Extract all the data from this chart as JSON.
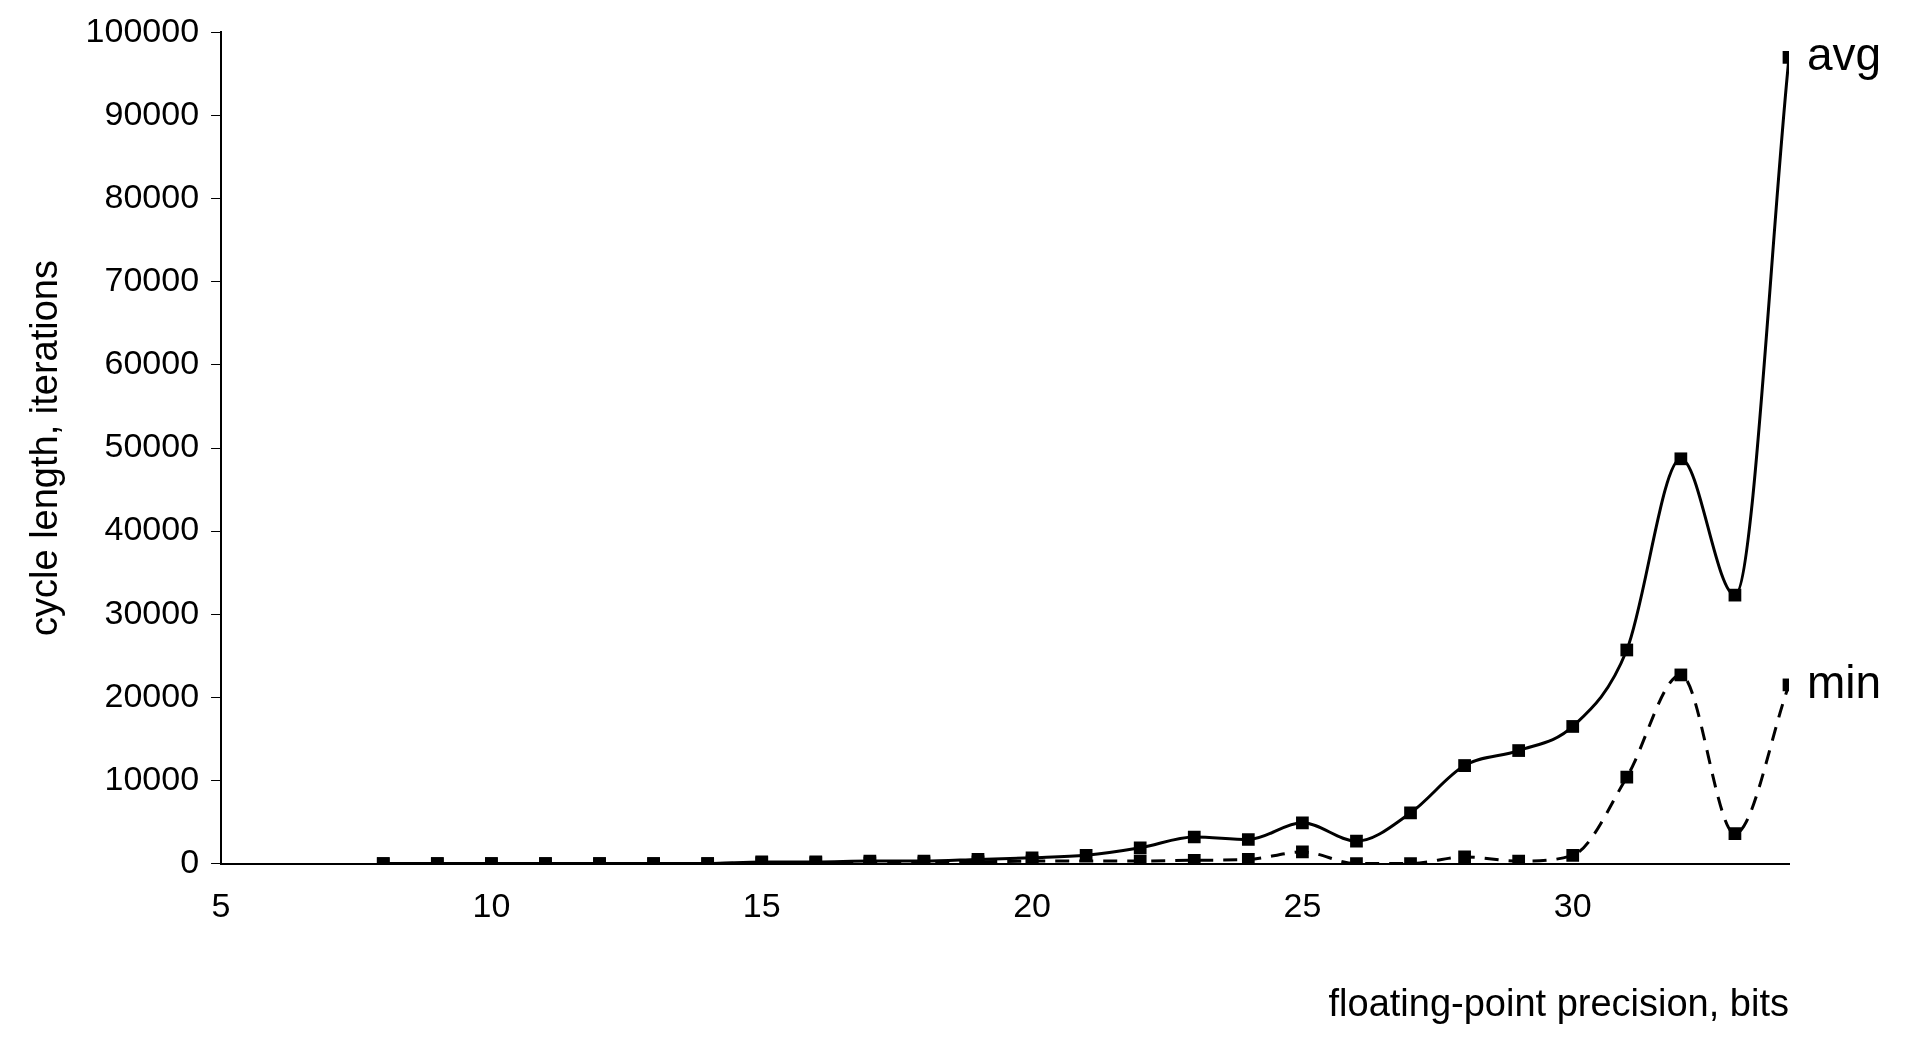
{
  "chart_data": {
    "type": "line",
    "xlabel": "floating-point precision, bits",
    "ylabel": "cycle length, iterations",
    "x": [
      8,
      9,
      10,
      11,
      12,
      13,
      14,
      15,
      16,
      17,
      18,
      19,
      20,
      21,
      22,
      23,
      24,
      25,
      26,
      27,
      28,
      29,
      30,
      31,
      32,
      33,
      34
    ],
    "series": [
      {
        "name": "avg",
        "color": "#000000",
        "line_style": "solid",
        "values": [
          0,
          0,
          0,
          0,
          0,
          0,
          0,
          200,
          200,
          300,
          300,
          500,
          700,
          1000,
          1900,
          3200,
          2900,
          4900,
          2700,
          6100,
          11800,
          13600,
          16500,
          25700,
          48700,
          32300,
          97000
        ]
      },
      {
        "name": "min",
        "color": "#000000",
        "line_style": "dashed",
        "values": [
          0,
          0,
          0,
          0,
          0,
          0,
          0,
          100,
          100,
          100,
          100,
          200,
          300,
          null,
          300,
          400,
          500,
          1400,
          0,
          0,
          800,
          300,
          1000,
          10400,
          22700,
          3600,
          21500
        ]
      }
    ],
    "xlim": [
      5,
      34
    ],
    "xticks": [
      5,
      10,
      15,
      20,
      25,
      30
    ],
    "ylim": [
      0,
      100000
    ],
    "yticks": [
      0,
      10000,
      20000,
      30000,
      40000,
      50000,
      60000,
      70000,
      80000,
      90000,
      100000
    ],
    "grid": false,
    "legend": false,
    "marker": "square"
  }
}
